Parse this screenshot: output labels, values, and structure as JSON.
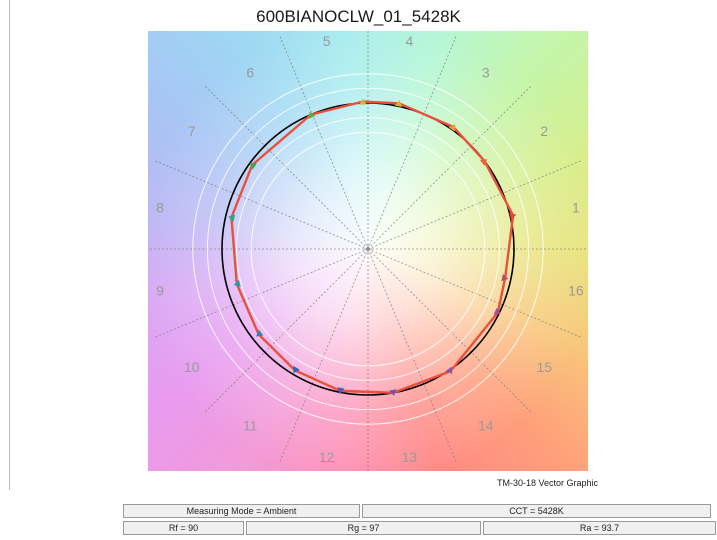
{
  "title": "600BIANOCLW_01_5428K",
  "graphic_label": "TM-30-18 Vector Graphic",
  "status": {
    "measuring_mode": "Measuring Mode = Ambient",
    "cct": "CCT = 5428K",
    "rf": "Rf = 90",
    "rg": "Rg = 97",
    "ra": "Ra = 93.7"
  },
  "colors": {
    "reference_circle": "#000000",
    "test_polygon": "#e8513d",
    "grid": "#7a7a7a",
    "bin_labels": "#9a9a9a"
  },
  "chart_data": {
    "type": "radar",
    "title": "600BIANOCLW_01_5428K",
    "bins": [
      "1",
      "2",
      "3",
      "4",
      "5",
      "6",
      "7",
      "8",
      "9",
      "10",
      "11",
      "12",
      "13",
      "14",
      "15",
      "16"
    ],
    "reference_radius": 1.0,
    "test_series": {
      "radius": [
        1.02,
        1.0,
        1.02,
        1.02,
        1.01,
        1.0,
        0.98,
        0.96,
        0.93,
        0.95,
        0.97,
        0.99,
        1.0,
        1.01,
        0.99,
        0.96
      ],
      "bin_hue_deg": [
        13,
        37,
        55,
        78,
        92,
        113,
        144,
        167,
        195,
        218,
        239,
        259,
        280,
        304,
        334,
        348
      ],
      "arrow_colors": [
        "#e8403a",
        "#e4663a",
        "#ea9a36",
        "#d8b12d",
        "#cdb935",
        "#5fae3c",
        "#3aa859",
        "#2aa68c",
        "#2a9aa8",
        "#2a84b4",
        "#2f63b6",
        "#5657b3",
        "#6c56b2",
        "#8a56ad",
        "#a04f9c",
        "#b84a76"
      ]
    }
  }
}
